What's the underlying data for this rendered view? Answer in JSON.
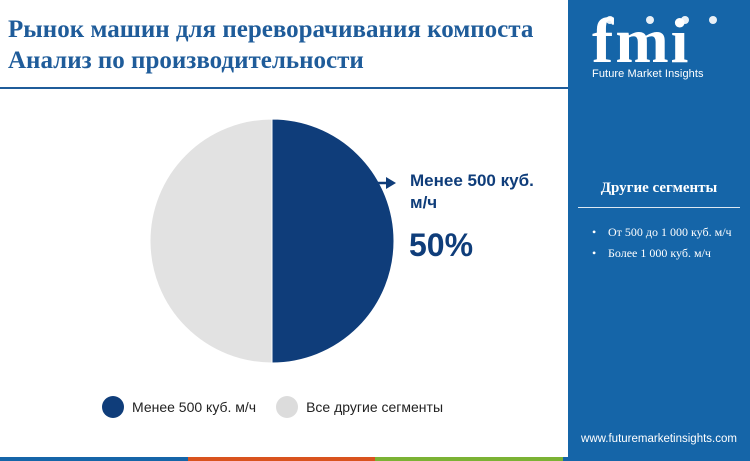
{
  "header": {
    "title": "Рынок машин для переворачивания компоста Анализ по производительности"
  },
  "brand": {
    "logo_letters": "fmi",
    "name": "Future Market Insights",
    "website": "www.futuremarketinsights.com"
  },
  "sidebar": {
    "heading": "Другие сегменты",
    "items": [
      "От 500 до 1 000 куб. м/ч",
      "Более 1 000 куб. м/ч"
    ]
  },
  "callout": {
    "label": "Менее 500 куб. м/ч",
    "value": "50%"
  },
  "chart_data": {
    "type": "pie",
    "slices": [
      {
        "name": "Менее 500 куб. м/ч",
        "value": 50,
        "color": "#0f3d7a"
      },
      {
        "name": "Все другие сегменты",
        "value": 50,
        "color": "#e2e2e2"
      }
    ],
    "legend": "bottom"
  },
  "legend_items": [
    {
      "label": "Менее 500 куб. м/ч",
      "color": "#0f3d7a"
    },
    {
      "label": "Все другие сегменты",
      "color": "#dcdcdc"
    }
  ],
  "colors": {
    "accent": "#1565a8",
    "title": "#1f5c9a",
    "primary_slice": "#0f3d7a",
    "footer": [
      "#1565a8",
      "#d9531e",
      "#7bb234",
      "#1565a8"
    ]
  }
}
